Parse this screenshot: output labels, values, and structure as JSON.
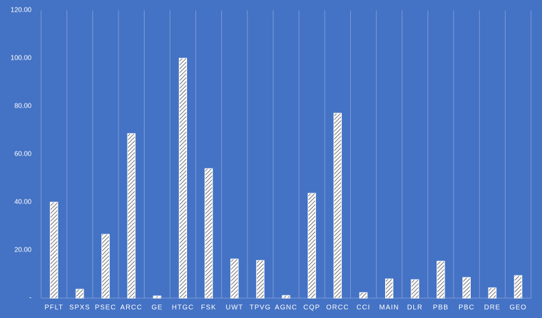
{
  "chart_data": {
    "type": "bar",
    "categories": [
      "PFLT",
      "SPXS",
      "PSEC",
      "ARCC",
      "GE",
      "HTGC",
      "FSK",
      "UWT",
      "TPVG",
      "AGNC",
      "CQP",
      "ORCC",
      "CCI",
      "MAIN",
      "DLR",
      "PBB",
      "PBC",
      "DRE",
      "GEO"
    ],
    "values": [
      40,
      3.7,
      26.6,
      68.6,
      0.9,
      100,
      54,
      16.3,
      15.7,
      1.1,
      43.7,
      77.1,
      2.3,
      8,
      7.7,
      15.4,
      8.6,
      4.3,
      9.4
    ],
    "color": "#ffffff",
    "ylim": [
      0,
      120
    ],
    "yticks": [
      {
        "value": 0,
        "label": "-"
      },
      {
        "value": 20,
        "label": "20.00"
      },
      {
        "value": 40,
        "label": "40.00"
      },
      {
        "value": 60,
        "label": "60.00"
      },
      {
        "value": 80,
        "label": "80.00"
      },
      {
        "value": 100,
        "label": "100.00"
      },
      {
        "value": 120,
        "label": "120.00"
      }
    ],
    "grid": false
  }
}
